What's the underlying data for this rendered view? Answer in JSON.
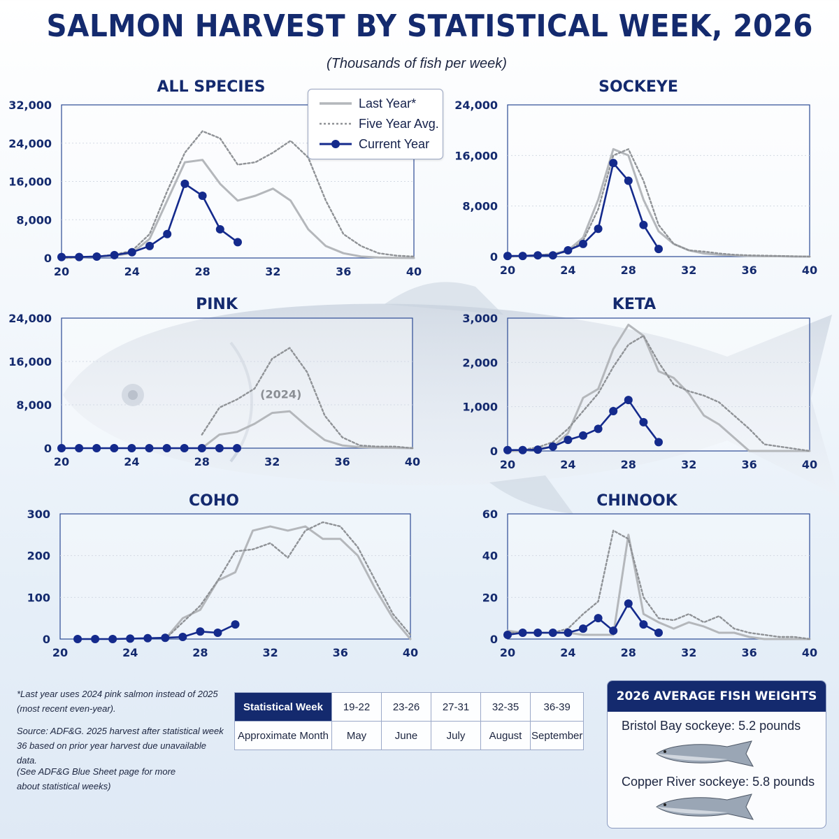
{
  "title": "SALMON HARVEST BY STATISTICAL WEEK, 2026",
  "subtitle": "(Thousands of fish per week)",
  "legend": {
    "last_year": "Last Year*",
    "five_year": "Five Year Avg.",
    "current_year": "Current Year"
  },
  "colors": {
    "current": "#142a8c",
    "last_year": "#b4b7bb",
    "five_year": "#8f9296",
    "frame": "#2c4a94",
    "title": "#142a6e"
  },
  "chart_data": [
    {
      "id": "all",
      "type": "line",
      "title": "ALL SPECIES",
      "xlim": [
        20,
        40
      ],
      "ylim": [
        0,
        32000
      ],
      "xticks": [
        20,
        24,
        28,
        32,
        36,
        40
      ],
      "yticks": [
        0,
        8000,
        16000,
        24000,
        32000
      ],
      "ytick_labels": [
        "0",
        "8,000",
        "16,000",
        "24,000",
        "32,000"
      ],
      "series": [
        {
          "name": "Last Year*",
          "x": [
            20,
            21,
            22,
            23,
            24,
            25,
            26,
            27,
            28,
            29,
            30,
            31,
            32,
            33,
            34,
            35,
            36,
            37,
            38,
            39,
            40
          ],
          "y": [
            0,
            100,
            300,
            500,
            1000,
            4000,
            12000,
            20000,
            20500,
            15500,
            12000,
            13000,
            14500,
            12000,
            6000,
            2500,
            1000,
            300,
            100,
            50,
            0
          ]
        },
        {
          "name": "Five Year Avg.",
          "x": [
            20,
            21,
            22,
            23,
            24,
            25,
            26,
            27,
            28,
            29,
            30,
            31,
            32,
            33,
            34,
            35,
            36,
            37,
            38,
            39,
            40
          ],
          "y": [
            0,
            100,
            300,
            700,
            1500,
            5000,
            14000,
            22000,
            26500,
            25000,
            19500,
            20000,
            22000,
            24500,
            21000,
            12000,
            5000,
            2500,
            1000,
            500,
            300
          ]
        },
        {
          "name": "Current Year",
          "x": [
            20,
            21,
            22,
            23,
            24,
            25,
            26,
            27,
            28,
            29,
            30
          ],
          "y": [
            200,
            200,
            300,
            600,
            1200,
            2500,
            5000,
            15500,
            13000,
            6000,
            3300
          ]
        }
      ]
    },
    {
      "id": "sockeye",
      "type": "line",
      "title": "SOCKEYE",
      "xlim": [
        20,
        40
      ],
      "ylim": [
        0,
        24000
      ],
      "xticks": [
        20,
        24,
        28,
        32,
        36,
        40
      ],
      "yticks": [
        0,
        8000,
        16000,
        24000
      ],
      "ytick_labels": [
        "0",
        "8,000",
        "16,000",
        "24,000"
      ],
      "series": [
        {
          "name": "Last Year*",
          "x": [
            20,
            21,
            22,
            23,
            24,
            25,
            26,
            27,
            28,
            29,
            30,
            31,
            32,
            33,
            34,
            35,
            36,
            37,
            38,
            39,
            40
          ],
          "y": [
            0,
            100,
            200,
            400,
            1000,
            3000,
            9000,
            17000,
            16000,
            9000,
            4000,
            2000,
            1000,
            500,
            300,
            200,
            100,
            50,
            50,
            0,
            0
          ]
        },
        {
          "name": "Five Year Avg.",
          "x": [
            20,
            21,
            22,
            23,
            24,
            25,
            26,
            27,
            28,
            29,
            30,
            31,
            32,
            33,
            34,
            35,
            36,
            37,
            38,
            39,
            40
          ],
          "y": [
            0,
            100,
            200,
            400,
            800,
            2500,
            7500,
            16000,
            17000,
            12000,
            5000,
            2000,
            1000,
            800,
            500,
            300,
            200,
            150,
            100,
            50,
            0
          ]
        },
        {
          "name": "Current Year",
          "x": [
            20,
            21,
            22,
            23,
            24,
            25,
            26,
            27,
            28,
            29,
            30
          ],
          "y": [
            100,
            100,
            200,
            200,
            1000,
            2000,
            4400,
            14800,
            12000,
            5000,
            1200
          ]
        }
      ]
    },
    {
      "id": "pink",
      "type": "line",
      "title": "PINK",
      "annotation": "(2024)",
      "xlim": [
        20,
        40
      ],
      "ylim": [
        0,
        24000
      ],
      "xticks": [
        20,
        24,
        28,
        32,
        36,
        40
      ],
      "yticks": [
        0,
        8000,
        16000,
        24000
      ],
      "ytick_labels": [
        "0",
        "8,000",
        "16,000",
        "24,000"
      ],
      "series": [
        {
          "name": "Last Year*",
          "x": [
            28,
            29,
            30,
            31,
            32,
            33,
            34,
            35,
            36,
            37,
            38,
            39,
            40
          ],
          "y": [
            0,
            2500,
            3000,
            4500,
            6500,
            6800,
            4000,
            1500,
            500,
            200,
            100,
            50,
            0
          ]
        },
        {
          "name": "Five Year Avg.",
          "x": [
            28,
            29,
            30,
            31,
            32,
            33,
            34,
            35,
            36,
            37,
            38,
            39,
            40
          ],
          "y": [
            2500,
            7500,
            9000,
            11000,
            16500,
            18500,
            14000,
            6000,
            2000,
            500,
            300,
            300,
            0
          ]
        },
        {
          "name": "Current Year",
          "x": [
            20,
            21,
            22,
            23,
            24,
            25,
            26,
            27,
            28,
            29,
            30
          ],
          "y": [
            0,
            0,
            0,
            0,
            0,
            0,
            0,
            0,
            0,
            0,
            0
          ]
        }
      ]
    },
    {
      "id": "keta",
      "type": "line",
      "title": "KETA",
      "xlim": [
        20,
        40
      ],
      "ylim": [
        0,
        3000
      ],
      "xticks": [
        20,
        24,
        28,
        32,
        36,
        40
      ],
      "yticks": [
        0,
        1000,
        2000,
        3000
      ],
      "ytick_labels": [
        "0",
        "1,000",
        "2,000",
        "3,000"
      ],
      "series": [
        {
          "name": "Last Year*",
          "x": [
            20,
            21,
            22,
            23,
            24,
            25,
            26,
            27,
            28,
            29,
            30,
            31,
            32,
            33,
            34,
            35,
            36,
            37,
            38,
            39,
            40
          ],
          "y": [
            0,
            0,
            50,
            100,
            400,
            1200,
            1400,
            2300,
            2850,
            2600,
            1800,
            1650,
            1300,
            800,
            600,
            300,
            0,
            0,
            0,
            0,
            0
          ]
        },
        {
          "name": "Five Year Avg.",
          "x": [
            20,
            21,
            22,
            23,
            24,
            25,
            26,
            27,
            28,
            29,
            30,
            31,
            32,
            33,
            34,
            35,
            36,
            37,
            38,
            39,
            40
          ],
          "y": [
            0,
            30,
            80,
            200,
            500,
            900,
            1300,
            1900,
            2400,
            2600,
            2000,
            1500,
            1350,
            1250,
            1100,
            800,
            500,
            150,
            100,
            50,
            0
          ]
        },
        {
          "name": "Current Year",
          "x": [
            20,
            21,
            22,
            23,
            24,
            25,
            26,
            27,
            28,
            29,
            30
          ],
          "y": [
            20,
            20,
            30,
            100,
            250,
            350,
            500,
            900,
            1150,
            650,
            200
          ]
        }
      ]
    },
    {
      "id": "coho",
      "type": "line",
      "title": "COHO",
      "xlim": [
        20,
        40
      ],
      "ylim": [
        0,
        300
      ],
      "xticks": [
        20,
        24,
        28,
        32,
        36,
        40
      ],
      "yticks": [
        0,
        100,
        200,
        300
      ],
      "ytick_labels": [
        "0",
        "100",
        "200",
        "300"
      ],
      "series": [
        {
          "name": "Last Year*",
          "x": [
            26,
            27,
            28,
            29,
            30,
            31,
            32,
            33,
            34,
            35,
            36,
            37,
            38,
            39,
            40
          ],
          "y": [
            0,
            50,
            70,
            140,
            160,
            260,
            270,
            260,
            270,
            240,
            240,
            200,
            120,
            50,
            0
          ]
        },
        {
          "name": "Five Year Avg.",
          "x": [
            26,
            27,
            28,
            29,
            30,
            31,
            32,
            33,
            34,
            35,
            36,
            37,
            38,
            39,
            40
          ],
          "y": [
            0,
            40,
            80,
            140,
            210,
            215,
            230,
            195,
            260,
            280,
            270,
            220,
            140,
            60,
            10
          ]
        },
        {
          "name": "Current Year",
          "x": [
            21,
            22,
            23,
            24,
            25,
            26,
            27,
            28,
            29,
            30
          ],
          "y": [
            0,
            0,
            0,
            1,
            2,
            3,
            5,
            18,
            15,
            35
          ]
        }
      ]
    },
    {
      "id": "chinook",
      "type": "line",
      "title": "CHINOOK",
      "xlim": [
        20,
        40
      ],
      "ylim": [
        0,
        60
      ],
      "xticks": [
        20,
        24,
        28,
        32,
        36,
        40
      ],
      "yticks": [
        0,
        20,
        40,
        60
      ],
      "ytick_labels": [
        "0",
        "20",
        "40",
        "60"
      ],
      "series": [
        {
          "name": "Last Year*",
          "x": [
            20,
            21,
            22,
            23,
            24,
            25,
            26,
            27,
            28,
            29,
            30,
            31,
            32,
            33,
            34,
            35,
            36,
            37,
            38,
            39,
            40
          ],
          "y": [
            4,
            3,
            3,
            3,
            3,
            2,
            2,
            2,
            50,
            12,
            8,
            5,
            8,
            6,
            3,
            3,
            1,
            0,
            0,
            0,
            0
          ]
        },
        {
          "name": "Five Year Avg.",
          "x": [
            20,
            21,
            22,
            23,
            24,
            25,
            26,
            27,
            28,
            29,
            30,
            31,
            32,
            33,
            34,
            35,
            36,
            37,
            38,
            39,
            40
          ],
          "y": [
            3,
            3,
            3,
            3,
            5,
            12,
            18,
            52,
            48,
            20,
            10,
            9,
            12,
            8,
            11,
            5,
            3,
            2,
            1,
            1,
            0
          ]
        },
        {
          "name": "Current Year",
          "x": [
            20,
            21,
            22,
            23,
            24,
            25,
            26,
            27,
            28,
            29,
            30
          ],
          "y": [
            2,
            3,
            3,
            3,
            3,
            5,
            10,
            4,
            17,
            7,
            3
          ]
        }
      ]
    }
  ],
  "notes": {
    "footnote": "*Last year uses 2024 pink salmon instead of 2025 (most recent even-year).",
    "source": "Source: ADF&G. 2025 harvest after statistical week 36 based on prior year harvest due unavailable data.",
    "see_also": "(See ADF&G Blue Sheet page for more about statistical weeks)"
  },
  "week_table": {
    "row1_header": "Statistical Week",
    "row2_header": "Approximate Month",
    "weeks": [
      "19-22",
      "23-26",
      "27-31",
      "32-35",
      "36-39"
    ],
    "months": [
      "May",
      "June",
      "July",
      "August",
      "September"
    ]
  },
  "weights": {
    "title": "2026 AVERAGE FISH WEIGHTS",
    "bristol": "Bristol Bay sockeye: 5.2 pounds",
    "copper": "Copper River sockeye: 5.8 pounds"
  }
}
